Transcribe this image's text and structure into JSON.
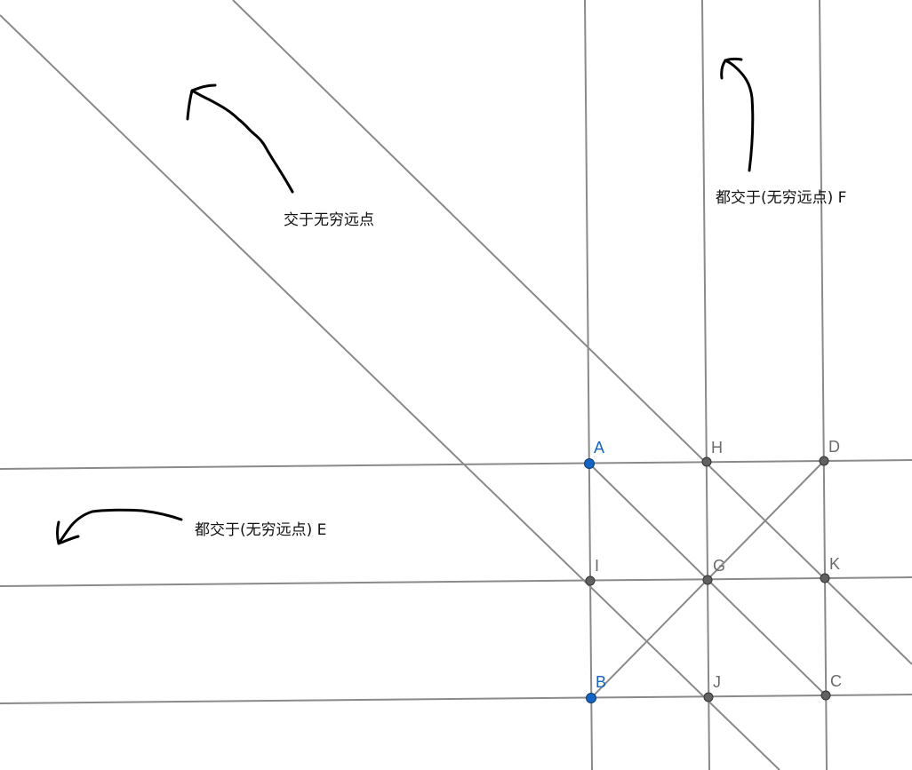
{
  "points": {
    "A": {
      "label": "A",
      "color": "#1565c0"
    },
    "B": {
      "label": "B",
      "color": "#1565c0"
    },
    "C": {
      "label": "C",
      "color": "#616161"
    },
    "D": {
      "label": "D",
      "color": "#616161"
    },
    "G": {
      "label": "G",
      "color": "#616161"
    },
    "H": {
      "label": "H",
      "color": "#616161"
    },
    "I": {
      "label": "I",
      "color": "#616161"
    },
    "J": {
      "label": "J",
      "color": "#616161"
    },
    "K": {
      "label": "K",
      "color": "#616161"
    }
  },
  "annotations": {
    "diagonal_note": "交于无穷远点",
    "vertical_note": "都交于(无穷远点) F",
    "horizontal_note": "都交于(无穷远点) E"
  },
  "colors": {
    "line": "#8a8a8a",
    "ink": "#000000",
    "free_point": "#1565c0",
    "dependent_point": "#616161"
  }
}
